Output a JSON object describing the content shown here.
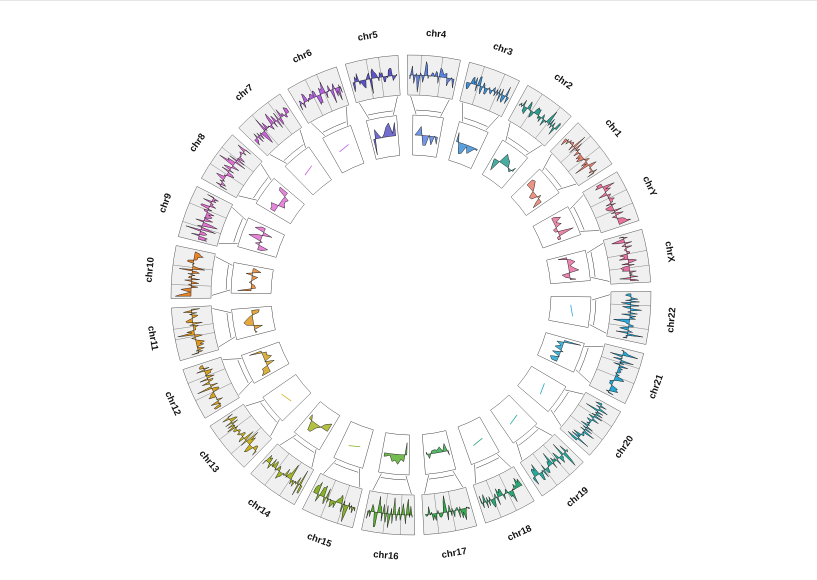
{
  "figure": {
    "type": "circos-genome-plot",
    "background": "#ffffff"
  },
  "chromosomes": [
    {
      "name": "chr1",
      "color": "#E8806E",
      "inner": true
    },
    {
      "name": "chr2",
      "color": "#2A9D8F",
      "inner": true
    },
    {
      "name": "chr3",
      "color": "#3C8FD6",
      "inner": true
    },
    {
      "name": "chr4",
      "color": "#5B82E0",
      "inner": true
    },
    {
      "name": "chr5",
      "color": "#5A54C8",
      "inner": true
    },
    {
      "name": "chr6",
      "color": "#B45FE0",
      "inner": false
    },
    {
      "name": "chr7",
      "color": "#C860D6",
      "inner": false
    },
    {
      "name": "chr8",
      "color": "#E070D6",
      "inner": true
    },
    {
      "name": "chr9",
      "color": "#E06FCE",
      "inner": true
    },
    {
      "name": "chr10",
      "color": "#E8832A",
      "inner": true
    },
    {
      "name": "chr11",
      "color": "#E0981F",
      "inner": true
    },
    {
      "name": "chr12",
      "color": "#D4A21E",
      "inner": true
    },
    {
      "name": "chr13",
      "color": "#C9B11E",
      "inner": false
    },
    {
      "name": "chr14",
      "color": "#A6B425",
      "inner": true
    },
    {
      "name": "chr15",
      "color": "#86B228",
      "inner": false
    },
    {
      "name": "chr16",
      "color": "#5CB033",
      "inner": true
    },
    {
      "name": "chr17",
      "color": "#36A94F",
      "inner": true
    },
    {
      "name": "chr18",
      "color": "#2AA874",
      "inner": false
    },
    {
      "name": "chr19",
      "color": "#25A99A",
      "inner": false
    },
    {
      "name": "chr20",
      "color": "#22AABE",
      "inner": false
    },
    {
      "name": "chr21",
      "color": "#24A6D2",
      "inner": true
    },
    {
      "name": "chr22",
      "color": "#2BA9DE",
      "inner": false
    },
    {
      "name": "chrX",
      "color": "#E86FA3",
      "inner": true
    },
    {
      "name": "chrY",
      "color": "#E8739A",
      "inner": true
    }
  ]
}
